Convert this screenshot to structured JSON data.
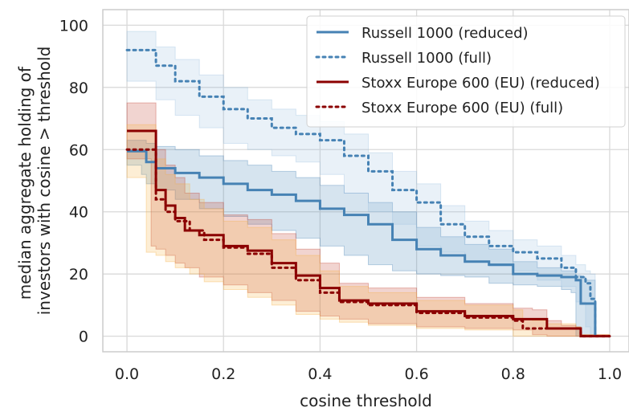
{
  "chart_data": {
    "type": "line",
    "title": "",
    "xlabel": "cosine threshold",
    "ylabel_lines": [
      "median aggregate holding of",
      "investors with cosine > threshold"
    ],
    "xlim": [
      -0.05,
      1.04
    ],
    "ylim": [
      -5,
      105
    ],
    "xticks": [
      0.0,
      0.2,
      0.4,
      0.6,
      0.8,
      1.0
    ],
    "xtick_labels": [
      "0.0",
      "0.2",
      "0.4",
      "0.6",
      "0.8",
      "1.0"
    ],
    "yticks": [
      0,
      20,
      40,
      60,
      80,
      100
    ],
    "ytick_labels": [
      "0",
      "20",
      "40",
      "60",
      "80",
      "100"
    ],
    "grid": true,
    "legend_position": "top-right",
    "series": [
      {
        "name": "Russell 1000 (reduced)",
        "color": "#4682b4",
        "dash": "solid",
        "band_color": "#4682b4",
        "x": [
          0.0,
          0.03,
          0.04,
          0.06,
          0.1,
          0.15,
          0.2,
          0.25,
          0.3,
          0.35,
          0.4,
          0.45,
          0.5,
          0.55,
          0.6,
          0.65,
          0.7,
          0.75,
          0.8,
          0.85,
          0.9,
          0.92,
          0.93,
          0.94,
          0.95,
          0.96,
          0.97
        ],
        "y": [
          59.5,
          59.5,
          56,
          54,
          52.5,
          51,
          49,
          47,
          45.5,
          43.5,
          41,
          39,
          36,
          31,
          28,
          26,
          24,
          23,
          20,
          19.5,
          19,
          19,
          18,
          10.5,
          10.5,
          10.5,
          0
        ],
        "lower": [
          55,
          55,
          52,
          49,
          47,
          44,
          41,
          38.5,
          36,
          34,
          31.5,
          29,
          26,
          23,
          21,
          20,
          19.5,
          19,
          17,
          16.5,
          16,
          15,
          14,
          0,
          0,
          0,
          0
        ],
        "upper": [
          63,
          63,
          62,
          61,
          60,
          58,
          56.5,
          55,
          53,
          51,
          48.5,
          46,
          43,
          40,
          35,
          32,
          29.5,
          28,
          24,
          22,
          21,
          21,
          19.5,
          19,
          18,
          18,
          0
        ]
      },
      {
        "name": "Russell 1000 (full)",
        "color": "#4682b4",
        "dash": "dotted",
        "band_color": "#9bbfe0",
        "x": [
          0.0,
          0.06,
          0.1,
          0.15,
          0.2,
          0.25,
          0.3,
          0.35,
          0.4,
          0.45,
          0.5,
          0.55,
          0.6,
          0.65,
          0.7,
          0.75,
          0.8,
          0.85,
          0.9,
          0.93,
          0.95,
          0.96,
          0.97
        ],
        "y": [
          92,
          87,
          82,
          77,
          73,
          70,
          67,
          65,
          63,
          58,
          53,
          47,
          43,
          36,
          32,
          29,
          27,
          25,
          22,
          19,
          17,
          12,
          0
        ],
        "lower": [
          87,
          82,
          76,
          71,
          67,
          62,
          60,
          58,
          56,
          52,
          46,
          40,
          36,
          29,
          27,
          24,
          22.5,
          21,
          18,
          16,
          11,
          3,
          0
        ],
        "upper": [
          98,
          93,
          89,
          84,
          80,
          76,
          73,
          71,
          69,
          65,
          59,
          53,
          49,
          42,
          37,
          34,
          31,
          29,
          26,
          23,
          21,
          20,
          0
        ]
      },
      {
        "name": "Stoxx Europe 600 (EU) (reduced)",
        "color": "#8b0000",
        "dash": "solid",
        "band_color": "#c0392b",
        "x": [
          0.0,
          0.05,
          0.06,
          0.08,
          0.1,
          0.12,
          0.15,
          0.2,
          0.25,
          0.3,
          0.35,
          0.4,
          0.44,
          0.5,
          0.6,
          0.7,
          0.8,
          0.84,
          0.87,
          0.9,
          0.93,
          0.94,
          1.0
        ],
        "y": [
          66,
          66,
          47,
          42,
          38,
          34,
          32.5,
          29,
          27.5,
          23.5,
          19.5,
          15.5,
          11.5,
          10.5,
          8,
          6.5,
          5.5,
          5.5,
          2.5,
          2.5,
          2.5,
          0,
          0
        ],
        "lower": [
          57,
          57,
          29,
          28,
          26,
          23.5,
          22,
          19,
          16.5,
          14,
          11.5,
          8,
          6.5,
          5.5,
          4,
          3,
          2.5,
          2,
          0.5,
          0,
          0,
          0,
          0
        ],
        "upper": [
          75,
          75,
          60,
          55,
          51,
          46,
          43,
          39,
          37.5,
          33,
          28,
          23.5,
          17,
          15.5,
          12.5,
          10.5,
          9,
          8.5,
          5,
          3.5,
          3,
          0.5,
          0
        ]
      },
      {
        "name": "Stoxx Europe 600 (EU) (full)",
        "color": "#8b0000",
        "dash": "dotted",
        "band_color": "#f5b041",
        "x": [
          0.0,
          0.04,
          0.06,
          0.08,
          0.1,
          0.13,
          0.16,
          0.2,
          0.25,
          0.3,
          0.35,
          0.4,
          0.44,
          0.5,
          0.6,
          0.7,
          0.8,
          0.82,
          0.84,
          0.87,
          0.93,
          0.94,
          1.0
        ],
        "y": [
          60,
          60,
          44,
          40,
          37,
          34,
          31,
          28.5,
          26.5,
          22,
          18,
          14,
          11,
          10,
          7.5,
          6,
          5,
          2.5,
          2.5,
          2.5,
          2.5,
          0,
          0
        ],
        "lower": [
          51,
          51,
          27,
          26,
          24,
          22,
          20,
          17.5,
          15,
          12.5,
          10,
          7,
          5.5,
          4.5,
          3.5,
          2.5,
          2,
          0,
          0,
          0,
          0,
          0,
          0
        ],
        "upper": [
          68,
          68,
          57,
          52,
          49,
          44,
          41,
          37,
          35,
          31,
          26,
          21,
          16,
          14,
          11.5,
          10,
          8.5,
          5.5,
          5,
          4,
          3,
          0.5,
          0
        ]
      }
    ]
  }
}
